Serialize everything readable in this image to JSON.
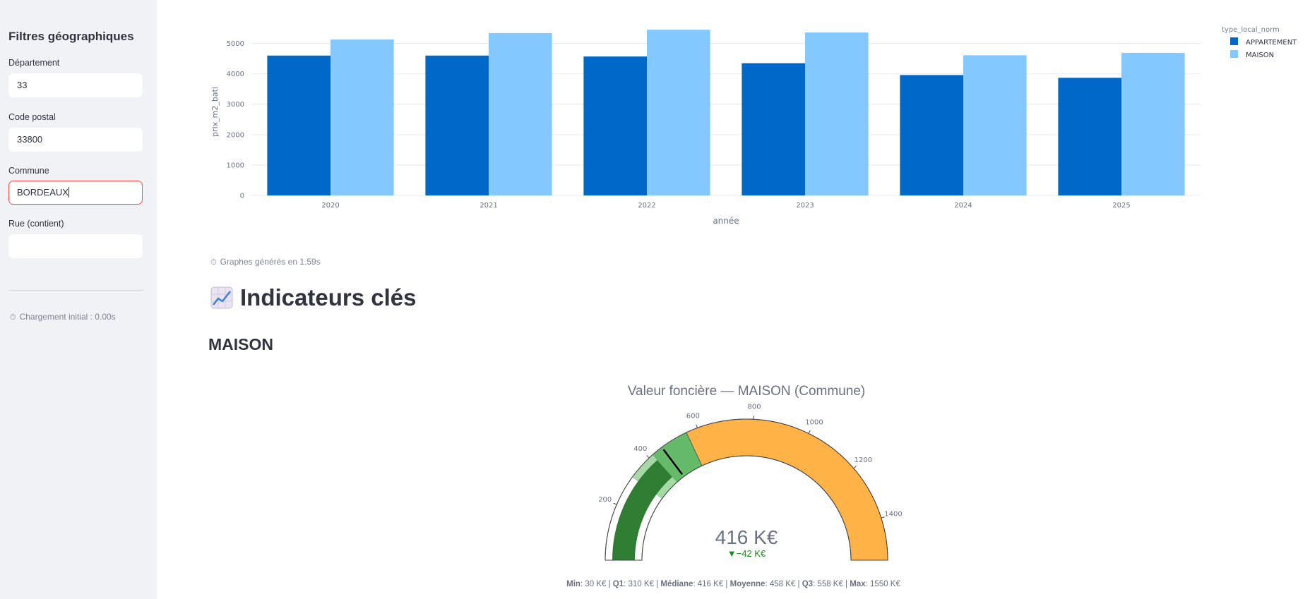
{
  "sidebar": {
    "title": "Filtres géographiques",
    "fields": [
      {
        "label": "Département",
        "value": "33"
      },
      {
        "label": "Code postal",
        "value": "33800"
      },
      {
        "label": "Commune",
        "value": "BORDEAUX"
      },
      {
        "label": "Rue (contient)",
        "value": ""
      }
    ],
    "footer": "Chargement initial : 0.00s"
  },
  "chart_data": [
    {
      "type": "bar",
      "categories": [
        "2020",
        "2021",
        "2022",
        "2023",
        "2024",
        "2025"
      ],
      "series": [
        {
          "name": "APPARTEMENT",
          "values": [
            4600,
            4600,
            4570,
            4350,
            3960,
            3870
          ],
          "color": "#0068c9"
        },
        {
          "name": "MAISON",
          "values": [
            5130,
            5340,
            5450,
            5360,
            4610,
            4690
          ],
          "color": "#83c9ff"
        }
      ],
      "xlabel": "année",
      "ylabel": "prix_m2_bati",
      "yticks": [
        0,
        1000,
        2000,
        3000,
        4000,
        5000
      ],
      "ylim": [
        0,
        5500
      ],
      "legend_title": "type_local_norm",
      "legend_position": "top-right",
      "grid": true
    },
    {
      "type": "gauge",
      "title": "Valeur foncière — MAISON (Commune)",
      "value": 416,
      "value_label": "416 K€",
      "delta_label": "▼−42 K€",
      "min": 0,
      "max": 1550,
      "ticks": [
        200,
        400,
        600,
        800,
        1000,
        1200,
        1400
      ],
      "bands": [
        {
          "from": 310,
          "to": 558,
          "color": "#a6d9a6"
        },
        {
          "from": 416,
          "to": 558,
          "color": "#66bb6a"
        },
        {
          "from": 558,
          "to": 1550,
          "color": "#ffb347"
        }
      ],
      "bar_color": "#2e7d32",
      "threshold": 458
    }
  ],
  "timing": "Graphes générés en 1.59s",
  "indicators_heading": "Indicateurs clés",
  "type_heading": "MAISON",
  "stats": [
    {
      "label": "Min",
      "value": "30 K€"
    },
    {
      "label": "Q1",
      "value": "310 K€"
    },
    {
      "label": "Médiane",
      "value": "416 K€"
    },
    {
      "label": "Moyenne",
      "value": "458 K€"
    },
    {
      "label": "Q3",
      "value": "558 K€"
    },
    {
      "label": "Max",
      "value": "1550 K€"
    }
  ]
}
